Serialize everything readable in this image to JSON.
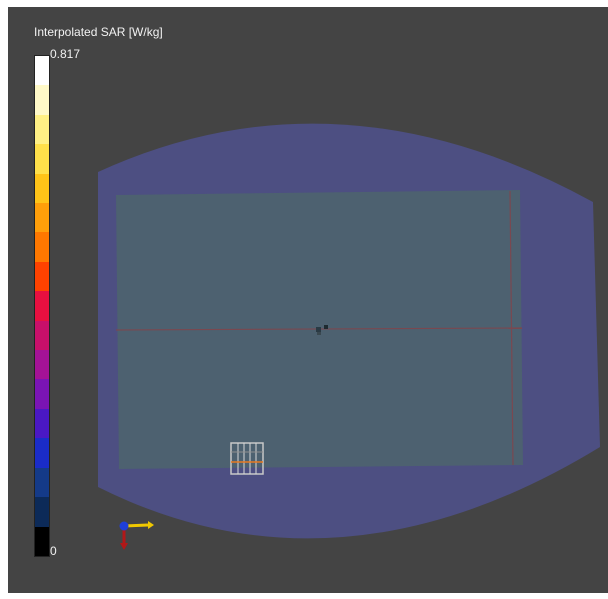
{
  "legend": {
    "title": "Interpolated SAR [W/kg]",
    "max_label": "0.817",
    "min_label": "0"
  },
  "colorbar_colors": [
    "#ffffff",
    "#fff9c8",
    "#fff085",
    "#ffe04a",
    "#ffc418",
    "#ff9f0a",
    "#ff7800",
    "#ff4200",
    "#e81040",
    "#c8106a",
    "#a41296",
    "#7a14b4",
    "#4a18c4",
    "#1a2cc8",
    "#143a88",
    "#0c2a58",
    "#000000"
  ],
  "colors": {
    "background": "#444444",
    "phantom_shell": "#4d4f82",
    "flat_region": "#4d6170",
    "field_line": "#7a4850"
  }
}
